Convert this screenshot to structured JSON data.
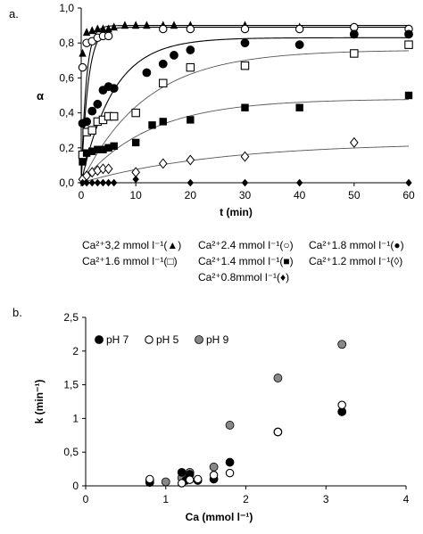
{
  "figure": {
    "panel_a_letter": "a.",
    "panel_b_letter": "b.",
    "legend_a": [
      [
        "Ca²⁺3,2 mmol l⁻¹(▲)",
        "Ca²⁺2.4 mmol l⁻¹(○)",
        "Ca²⁺1.8 mmol l⁻¹(●)"
      ],
      [
        "Ca²⁺1.6 mmol l⁻¹(□)",
        "Ca²⁺1.4 mmol l⁻¹(■)",
        "Ca²⁺1.2 mmol l⁻¹(◊)"
      ],
      [
        "Ca²⁺0.8mmol l⁻¹(♦)"
      ]
    ]
  },
  "chart_data": [
    {
      "type": "scatter",
      "panel": "a",
      "xlabel": "t (min)",
      "ylabel": "α",
      "xlim": [
        0,
        60
      ],
      "ylim": [
        0,
        1
      ],
      "xticks": [
        "0",
        "10",
        "20",
        "30",
        "40",
        "50",
        "60"
      ],
      "yticks": [
        "0,0",
        "0,2",
        "0,4",
        "0,6",
        "0,8",
        "1,0"
      ],
      "fitted_curves": true,
      "series": [
        {
          "label": "Ca²⁺3,2 mmol l⁻¹",
          "marker": "triangle-filled",
          "k": 1.1,
          "plateau": 0.9,
          "x": [
            0.25,
            1,
            2,
            3,
            4,
            5,
            6,
            8,
            10,
            12,
            15,
            17,
            20,
            30,
            40,
            50,
            60
          ],
          "y": [
            0.74,
            0.86,
            0.87,
            0.88,
            0.88,
            0.88,
            0.89,
            0.9,
            0.9,
            0.9,
            0.9,
            0.9,
            0.9,
            0.9,
            0.89,
            0.89,
            0.88
          ]
        },
        {
          "label": "Ca²⁺2.4 mmol l⁻¹",
          "marker": "circle-open",
          "k": 0.8,
          "plateau": 0.89,
          "x": [
            0.25,
            1,
            2,
            3,
            4,
            5,
            15,
            20,
            30,
            40,
            50,
            60
          ],
          "y": [
            0.66,
            0.8,
            0.81,
            0.83,
            0.84,
            0.84,
            0.88,
            0.88,
            0.88,
            0.88,
            0.89,
            0.88
          ]
        },
        {
          "label": "Ca²⁺1.8 mmol l⁻¹",
          "marker": "circle-filled",
          "k": 0.17,
          "plateau": 0.83,
          "x": [
            0.25,
            1,
            2,
            3,
            4,
            5,
            6,
            12,
            15,
            17,
            20,
            30,
            40,
            50,
            60
          ],
          "y": [
            0.34,
            0.35,
            0.41,
            0.45,
            0.53,
            0.55,
            0.54,
            0.63,
            0.68,
            0.73,
            0.76,
            0.8,
            0.79,
            0.85,
            0.85
          ]
        },
        {
          "label": "Ca²⁺1.6 mmol l⁻¹",
          "marker": "square-open",
          "k": 0.085,
          "plateau": 0.76,
          "x": [
            0.25,
            1,
            2,
            3,
            4,
            5,
            6,
            10,
            15,
            20,
            30,
            50,
            60
          ],
          "y": [
            0.16,
            0.29,
            0.3,
            0.35,
            0.36,
            0.38,
            0.38,
            0.4,
            0.57,
            0.66,
            0.67,
            0.74,
            0.79
          ]
        },
        {
          "label": "Ca²⁺1.4 mmol l⁻¹",
          "marker": "square-filled",
          "k": 0.08,
          "plateau": 0.48,
          "x": [
            0.25,
            1,
            2,
            3,
            4,
            5,
            6,
            10,
            13,
            15,
            20,
            30,
            40,
            60
          ],
          "y": [
            0.12,
            0.17,
            0.18,
            0.19,
            0.19,
            0.2,
            0.21,
            0.23,
            0.33,
            0.35,
            0.36,
            0.43,
            0.43,
            0.5
          ]
        },
        {
          "label": "Ca²⁺1.2 mmol l⁻¹",
          "marker": "diamond-open",
          "k": 0.04,
          "plateau": 0.23,
          "x": [
            0.25,
            1,
            2,
            3,
            4,
            5,
            10,
            15,
            20,
            30,
            50
          ],
          "y": [
            0.02,
            0.04,
            0.06,
            0.07,
            0.08,
            0.08,
            0.06,
            0.11,
            0.13,
            0.15,
            0.23
          ]
        },
        {
          "label": "Ca²⁺0.8mmol l⁻¹",
          "marker": "diamond-filled",
          "k": 0,
          "plateau": 0,
          "x": [
            0.25,
            1,
            2,
            3,
            4,
            5,
            6,
            10,
            20,
            30,
            40,
            60
          ],
          "y": [
            0.0,
            0.0,
            0.0,
            0.0,
            0.0,
            0.0,
            0.0,
            0.02,
            0.0,
            0.0,
            0.0,
            0.0
          ]
        }
      ]
    },
    {
      "type": "scatter",
      "panel": "b",
      "xlabel": "Ca (mmol l⁻¹)",
      "ylabel": "k (min⁻¹)",
      "xlim": [
        0,
        4
      ],
      "ylim": [
        0,
        2.5
      ],
      "xticks": [
        "0",
        "1",
        "2",
        "3",
        "4"
      ],
      "yticks": [
        "0",
        "0,5",
        "1",
        "1,5",
        "2",
        "2,5"
      ],
      "legend_position": "top-left",
      "series": [
        {
          "name": "pH 7",
          "marker": "circle-filled",
          "color": "#000000",
          "x": [
            0.8,
            1.2,
            1.25,
            1.3,
            1.4,
            1.6,
            1.8,
            2.4,
            3.2
          ],
          "y": [
            0.05,
            0.2,
            0.08,
            0.17,
            0.08,
            0.1,
            0.35,
            0.8,
            1.1
          ]
        },
        {
          "name": "pH 5",
          "marker": "circle-open",
          "color": "#ffffff",
          "x": [
            0.8,
            1.2,
            1.3,
            1.4,
            1.6,
            1.8,
            2.4,
            3.2
          ],
          "y": [
            0.1,
            0.04,
            0.09,
            0.1,
            0.16,
            0.19,
            0.8,
            1.2
          ]
        },
        {
          "name": "pH 9",
          "marker": "circle-filled",
          "color": "#888888",
          "x": [
            0.8,
            1.0,
            1.2,
            1.3,
            1.6,
            1.8,
            2.4,
            3.2
          ],
          "y": [
            0.08,
            0.06,
            0.12,
            0.2,
            0.28,
            0.9,
            1.6,
            2.1
          ]
        }
      ]
    }
  ]
}
